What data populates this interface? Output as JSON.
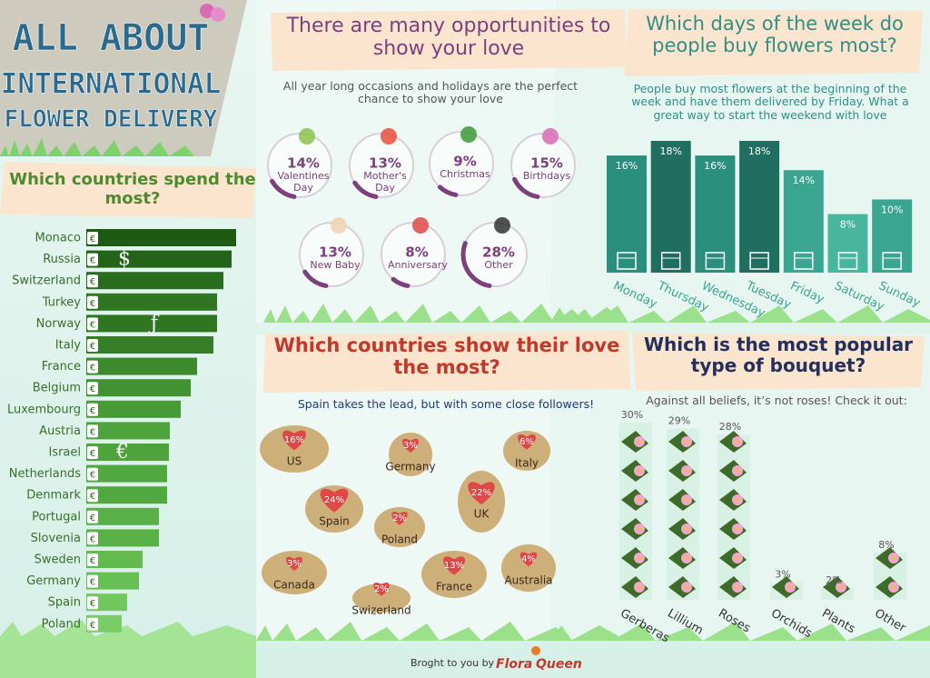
{
  "header": {
    "title_lines": [
      "ALL ABOUT",
      "INTERNATIONAL",
      "FLOWER DELIVERY"
    ]
  },
  "chart_data": [
    {
      "type": "hbar",
      "title": "Which countries spend the most?",
      "categories": [
        "Monaco",
        "Russia",
        "Switzerland",
        "Turkey",
        "Norway",
        "Italy",
        "France",
        "Belgium",
        "Luxembourg",
        "Austria",
        "Israel",
        "Netherlands",
        "Denmark",
        "Portugal",
        "Slovenia",
        "Sweden",
        "Germany",
        "Spain",
        "Poland"
      ],
      "values": [
        165,
        160,
        151,
        144,
        144,
        140,
        122,
        115,
        104,
        92,
        91,
        89,
        89,
        80,
        80,
        62,
        58,
        45,
        39
      ],
      "colors": [
        "#1e5a12",
        "#24641a",
        "#2a6c1e",
        "#2f7522",
        "#2f7522",
        "#357d27",
        "#3d8a2e",
        "#429132",
        "#489a37",
        "#4ea33c",
        "#4ea33c",
        "#52a840",
        "#52a840",
        "#58b046",
        "#58b046",
        "#63bb50",
        "#68bf55",
        "#72c75e",
        "#7acd66"
      ],
      "tag": "€",
      "symbols": [
        "$",
        "ƒ",
        "€"
      ]
    },
    {
      "type": "ring",
      "title": "There are many opportunities to show your love",
      "subtitle": "All year long occasions and holidays are the perfect chance to show your love",
      "categories": [
        "Valentines Day",
        "Mother's Day",
        "Christmas",
        "Birthdays",
        "New Baby",
        "Anniversary",
        "Other"
      ],
      "values": [
        14,
        13,
        9,
        15,
        13,
        8,
        28
      ],
      "value_labels": [
        "14%",
        "13%",
        "9%",
        "15%",
        "13%",
        "8%",
        "28%"
      ],
      "color": "#7d3f7d"
    },
    {
      "type": "bar",
      "title": "Which days of the week do people buy flowers most?",
      "subtitle": "People buy most flowers at the beginning of the week and have them delivered by Friday. What a great way to start the weekend with love",
      "categories": [
        "Monday",
        "Thursday",
        "Wednesday",
        "Tuesday",
        "Friday",
        "Saturday",
        "Sunday"
      ],
      "values": [
        16,
        18,
        16,
        18,
        14,
        8,
        10
      ],
      "value_labels": [
        "16%",
        "18%",
        "16%",
        "18%",
        "14%",
        "8%",
        "10%"
      ],
      "colors": [
        "#2a8f7c",
        "#1f6e5f",
        "#2a8f7c",
        "#1f6e5f",
        "#3aa68f",
        "#48b59d",
        "#3aa68f"
      ]
    },
    {
      "type": "map",
      "title": "Which countries show their love the most?",
      "subtitle": "Spain takes the lead, but with some close followers!",
      "categories": [
        "US",
        "Germany",
        "Italy",
        "UK",
        "Spain",
        "Poland",
        "Canada",
        "Swizerland",
        "France",
        "Australia"
      ],
      "values": [
        16,
        3,
        6,
        22,
        24,
        2,
        3,
        2,
        13,
        4
      ],
      "value_labels": [
        "16%",
        "3%",
        "6%",
        "22%",
        "24%",
        "2%",
        "3%",
        "2%",
        "13%",
        "4%"
      ],
      "color": "#e04848"
    },
    {
      "type": "pictogram",
      "title": "Which is the most popular type of bouquet?",
      "subtitle": "Against all beliefs, it’s not roses! Check it out:",
      "categories": [
        "Gerberas",
        "Lillium",
        "Roses",
        "Orchids",
        "Plants",
        "Other"
      ],
      "values": [
        30,
        29,
        28,
        3,
        2,
        8
      ],
      "value_labels": [
        "30%",
        "29%",
        "28%",
        "3%",
        "2%",
        "8%"
      ]
    }
  ],
  "footer": {
    "text": "Broght to you by",
    "brand": [
      "Flora",
      "Queen"
    ]
  }
}
